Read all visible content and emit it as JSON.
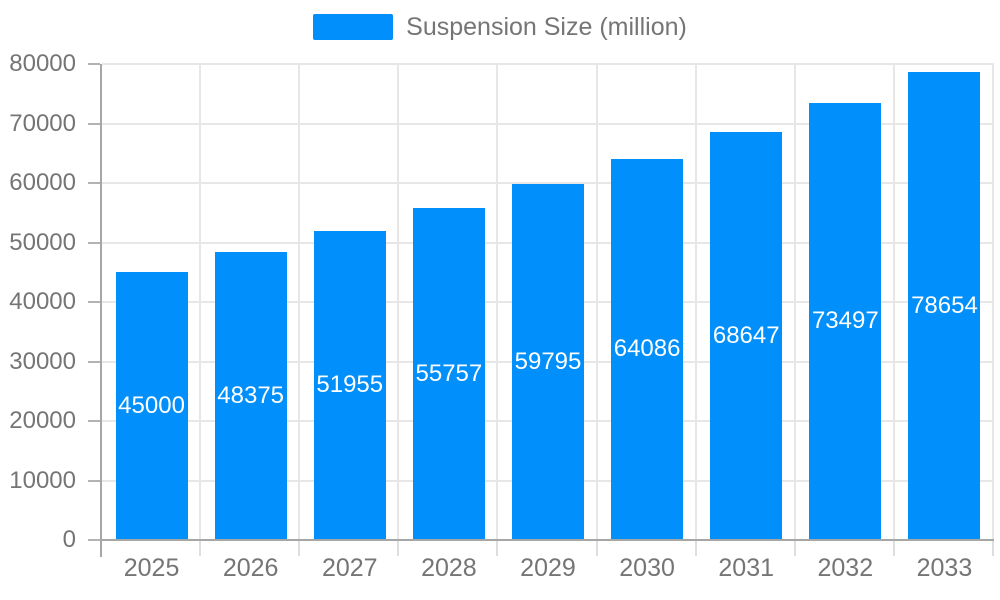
{
  "chart_data": {
    "type": "bar",
    "title": "",
    "series_name": "Suspension Size (million)",
    "categories": [
      "2025",
      "2026",
      "2027",
      "2028",
      "2029",
      "2030",
      "2031",
      "2032",
      "2033"
    ],
    "values": [
      45000,
      48375,
      51955,
      55757,
      59795,
      64086,
      68647,
      73497,
      78654
    ],
    "xlabel": "",
    "ylabel": "",
    "ylim": [
      0,
      80000
    ],
    "ytick_step": 10000,
    "y_tick_labels": [
      "0",
      "10000",
      "20000",
      "30000",
      "40000",
      "50000",
      "60000",
      "70000",
      "80000"
    ],
    "grid": true,
    "legend_position": "top",
    "data_label_position": "center",
    "colors": {
      "bar": "#008FFB",
      "bar_label": "#ffffff",
      "axis_text": "#757575",
      "grid_line": "#e7e7e7",
      "axis_line": "#a6a6a6",
      "background": "#ffffff"
    }
  }
}
